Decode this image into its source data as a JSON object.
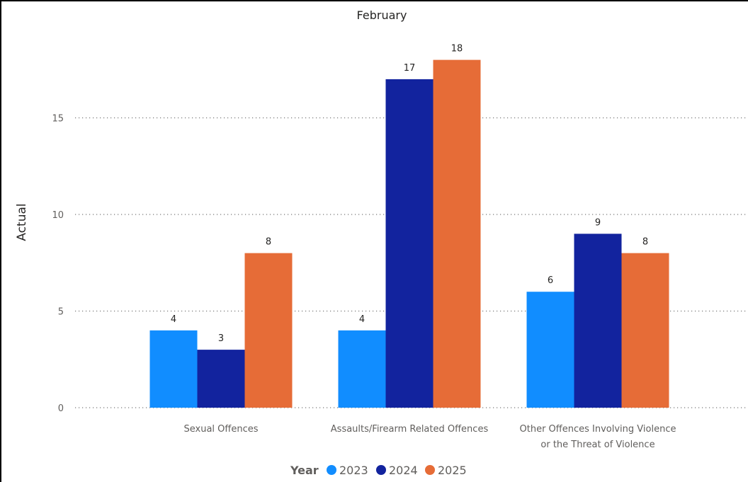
{
  "chart_data": {
    "type": "bar",
    "title": "February",
    "xlabel": "",
    "ylabel": "Actual",
    "categories": [
      [
        "Sexual Offences"
      ],
      [
        "Assaults/Firearm Related Offences"
      ],
      [
        "Other Offences Involving Violence",
        "or the Threat of Violence"
      ]
    ],
    "series": [
      {
        "name": "2023",
        "color": "#118dff",
        "values": [
          4,
          4,
          6
        ]
      },
      {
        "name": "2024",
        "color": "#12239e",
        "values": [
          3,
          17,
          9
        ]
      },
      {
        "name": "2025",
        "color": "#e66c37",
        "values": [
          8,
          18,
          8
        ]
      }
    ],
    "ylim": [
      0,
      18
    ],
    "yticks": [
      0,
      5,
      10,
      15
    ],
    "grid": true,
    "gridStyle": "dotted",
    "legend": {
      "title": "Year",
      "position": "bottom-center"
    }
  }
}
